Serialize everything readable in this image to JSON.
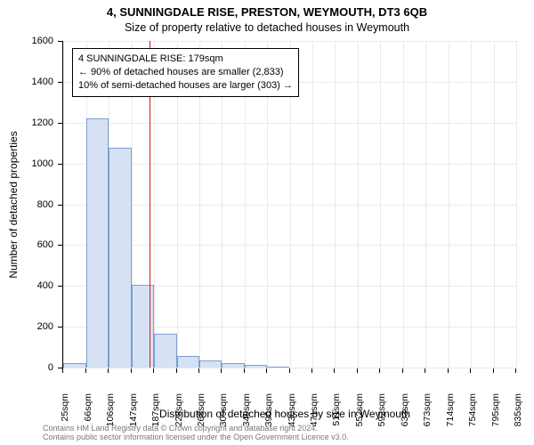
{
  "chart": {
    "type": "histogram",
    "title_line1": "4, SUNNINGDALE RISE, PRESTON, WEYMOUTH, DT3 6QB",
    "title_line2": "Size of property relative to detached houses in Weymouth",
    "title_fontsize": 13,
    "subtitle_fontsize": 12.5,
    "ylabel": "Number of detached properties",
    "xlabel": "Distribution of detached houses by size in Weymouth",
    "label_fontsize": 12,
    "background_color": "#ffffff",
    "grid_color": "#eaeaea",
    "axis_color": "#000000",
    "bar_fill": "#d6e2f3",
    "bar_stroke": "#7d9dd1",
    "marker_color": "#d02020",
    "ylim": [
      0,
      1600
    ],
    "ytick_step": 200,
    "yticks": [
      0,
      200,
      400,
      600,
      800,
      1000,
      1200,
      1400,
      1600
    ],
    "xticks": [
      "25sqm",
      "66sqm",
      "106sqm",
      "147sqm",
      "187sqm",
      "228sqm",
      "268sqm",
      "309sqm",
      "349sqm",
      "390sqm",
      "430sqm",
      "471sqm",
      "511sqm",
      "552sqm",
      "592sqm",
      "633sqm",
      "673sqm",
      "714sqm",
      "754sqm",
      "795sqm",
      "835sqm"
    ],
    "xmin": 25,
    "xmax": 835,
    "bin_edges": [
      25,
      66,
      106,
      147,
      187,
      228,
      268,
      309,
      349,
      390,
      430,
      471,
      511,
      552,
      592,
      633,
      673,
      714,
      754,
      795,
      835
    ],
    "bin_values": [
      20,
      1220,
      1075,
      405,
      165,
      55,
      35,
      20,
      12,
      5,
      0,
      0,
      0,
      0,
      0,
      0,
      0,
      0,
      0,
      0
    ],
    "marker_x": 179,
    "annotation": {
      "line1": "4 SUNNINGDALE RISE: 179sqm",
      "line2": "← 90% of detached houses are smaller (2,833)",
      "line3": "10% of semi-detached houses are larger (303) →",
      "fontsize": 11
    },
    "footer_line1": "Contains HM Land Registry data © Crown copyright and database right 2024.",
    "footer_line2": "Contains public sector information licensed under the Open Government Licence v3.0.",
    "footer_fontsize": 9,
    "footer_color": "#777777"
  }
}
